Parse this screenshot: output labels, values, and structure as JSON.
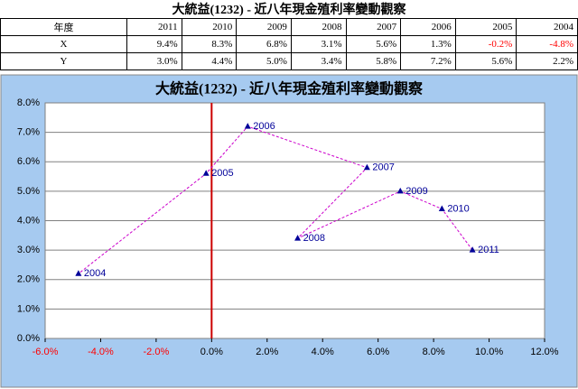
{
  "table": {
    "title": "大統益(1232) - 近八年現金殖利率變動觀察",
    "header": [
      "年度",
      "2011",
      "2010",
      "2009",
      "2008",
      "2007",
      "2006",
      "2005",
      "2004"
    ],
    "rows": [
      [
        "X",
        "9.4%",
        "8.3%",
        "6.8%",
        "3.1%",
        "5.6%",
        "1.3%",
        "-0.2%",
        "-4.8%"
      ],
      [
        "Y",
        "3.0%",
        "4.4%",
        "5.0%",
        "3.4%",
        "5.8%",
        "7.2%",
        "5.6%",
        "2.2%"
      ]
    ],
    "negative_color": "#ff0000"
  },
  "chart_data": {
    "type": "scatter",
    "title": "大統益(1232) - 近八年現金殖利率變動觀察",
    "labels": [
      "2011",
      "2010",
      "2009",
      "2008",
      "2007",
      "2006",
      "2005",
      "2004"
    ],
    "x": [
      9.4,
      8.3,
      6.8,
      3.1,
      5.6,
      1.3,
      -0.2,
      -4.8
    ],
    "y": [
      3.0,
      4.4,
      5.0,
      3.4,
      5.8,
      7.2,
      5.6,
      2.2
    ],
    "color": "#000099",
    "line_color": "#cc00cc",
    "zero_axis_color": "#cc0000",
    "negative_tick_color": "#ff0000",
    "xlim": [
      -6,
      12
    ],
    "xticks": [
      {
        "value": -6,
        "label": "-6.0%"
      },
      {
        "value": -4,
        "label": "-4.0%"
      },
      {
        "value": -2,
        "label": "-2.0%"
      },
      {
        "value": 0,
        "label": "0.0%"
      },
      {
        "value": 2,
        "label": "2.0%"
      },
      {
        "value": 4,
        "label": "4.0%"
      },
      {
        "value": 6,
        "label": "6.0%"
      },
      {
        "value": 8,
        "label": "8.0%"
      },
      {
        "value": 10,
        "label": "10.0%"
      },
      {
        "value": 12,
        "label": "12.0%"
      }
    ],
    "ylim": [
      0,
      8
    ],
    "yticks": [
      {
        "value": 0,
        "label": "0.0%"
      },
      {
        "value": 1,
        "label": "1.0%"
      },
      {
        "value": 2,
        "label": "2.0%"
      },
      {
        "value": 3,
        "label": "3.0%"
      },
      {
        "value": 4,
        "label": "4.0%"
      },
      {
        "value": 5,
        "label": "5.0%"
      },
      {
        "value": 6,
        "label": "6.0%"
      },
      {
        "value": 7,
        "label": "7.0%"
      },
      {
        "value": 8,
        "label": "8.0%"
      }
    ],
    "grid": true
  }
}
